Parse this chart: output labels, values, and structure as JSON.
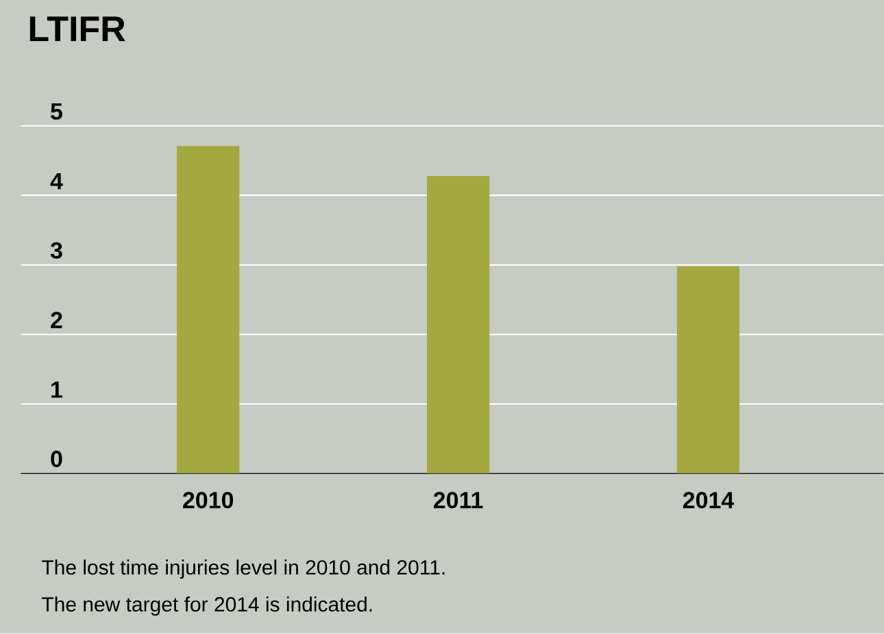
{
  "chart_data": {
    "type": "bar",
    "title": "LTIFR",
    "categories": [
      "2010",
      "2011",
      "2014"
    ],
    "values": [
      4.71,
      4.28,
      2.98
    ],
    "color": "#a3a940",
    "ylim": [
      0,
      5
    ],
    "yticks": [
      0,
      1,
      2,
      3,
      4,
      5
    ],
    "grid": "y",
    "annotations": [
      "The lost time injuries level in 2010 and 2011.",
      "The new target for 2014 is indicated."
    ]
  }
}
